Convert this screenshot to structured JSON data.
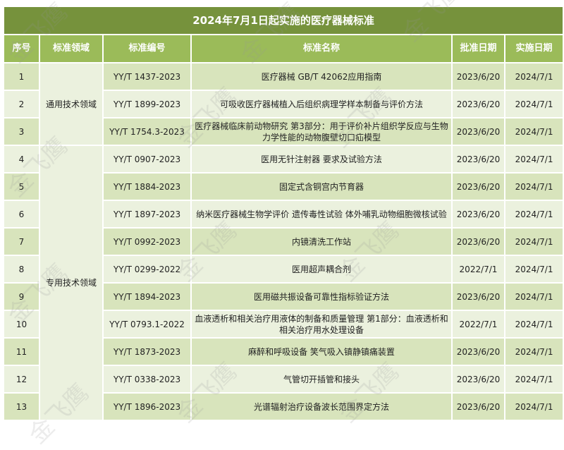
{
  "title": "2024年7月1日起实施的医疗器械标准",
  "headers": [
    "序号",
    "标准领域",
    "标准编号",
    "标准名称",
    "批准日期",
    "实施日期"
  ],
  "domains": [
    {
      "label": "通用技术领域"
    },
    {
      "label": "专用技术领域"
    }
  ],
  "rows": [
    {
      "no": "1",
      "code": "YY/T 1437-2023",
      "name": "医疗器械 GB/T 42062应用指南",
      "approved": "2023/6/20",
      "effective": "2024/7/1"
    },
    {
      "no": "2",
      "code": "YY/T 1899-2023",
      "name": "可吸收医疗器械植入后组织病理学样本制备与评价方法",
      "approved": "2023/6/20",
      "effective": "2024/7/1"
    },
    {
      "no": "3",
      "code": "YY/T 1754.3-2023",
      "name": "医疗器械临床前动物研究 第3部分：用于评价补片组织学反应与生物力学性能的动物腹壁切口疝模型",
      "approved": "2023/6/20",
      "effective": "2024/7/1"
    },
    {
      "no": "4",
      "code": "YY/T 0907-2023",
      "name": "医用无针注射器 要求及试验方法",
      "approved": "2023/6/20",
      "effective": "2024/7/1"
    },
    {
      "no": "5",
      "code": "YY/T 1884-2023",
      "name": "固定式含铜宫内节育器",
      "approved": "2023/6/20",
      "effective": "2024/7/1"
    },
    {
      "no": "6",
      "code": "YY/T 1897-2023",
      "name": "纳米医疗器械生物学评价 遗传毒性试验 体外哺乳动物细胞微核试验",
      "approved": "2023/6/20",
      "effective": "2024/7/1"
    },
    {
      "no": "7",
      "code": "YY/T 0992-2023",
      "name": "内镜清洗工作站",
      "approved": "2023/6/20",
      "effective": "2024/7/1"
    },
    {
      "no": "8",
      "code": "YY/T 0299-2022",
      "name": "医用超声耦合剂",
      "approved": "2022/7/1",
      "effective": "2024/7/1"
    },
    {
      "no": "9",
      "code": "YY/T 1894-2023",
      "name": "医用磁共振设备可靠性指标验证方法",
      "approved": "2023/6/20",
      "effective": "2024/7/1"
    },
    {
      "no": "10",
      "code": "YY/T 0793.1-2022",
      "name": "血液透析和相关治疗用液体的制备和质量管理 第1部分：血液透析和相关治疗用水处理设备",
      "approved": "2022/7/1",
      "effective": "2024/7/1"
    },
    {
      "no": "11",
      "code": "YY/T 1873-2023",
      "name": "麻醉和呼吸设备 笑气吸入镇静镇痛装置",
      "approved": "2023/6/20",
      "effective": "2024/7/1"
    },
    {
      "no": "12",
      "code": "YY/T 0338-2023",
      "name": "气管切开插管和接头",
      "approved": "2023/6/20",
      "effective": "2024/7/1"
    },
    {
      "no": "13",
      "code": "YY/T 1896-2023",
      "name": "光谱辐射治疗设备波长范围界定方法",
      "approved": "2023/6/20",
      "effective": "2024/7/1"
    }
  ],
  "watermark": "金飞鹰",
  "colors": {
    "title_bg": "#76923c",
    "header_bg": "#9bbb59",
    "row_dark": "#d8e4bc",
    "row_light": "#ebf1de"
  }
}
